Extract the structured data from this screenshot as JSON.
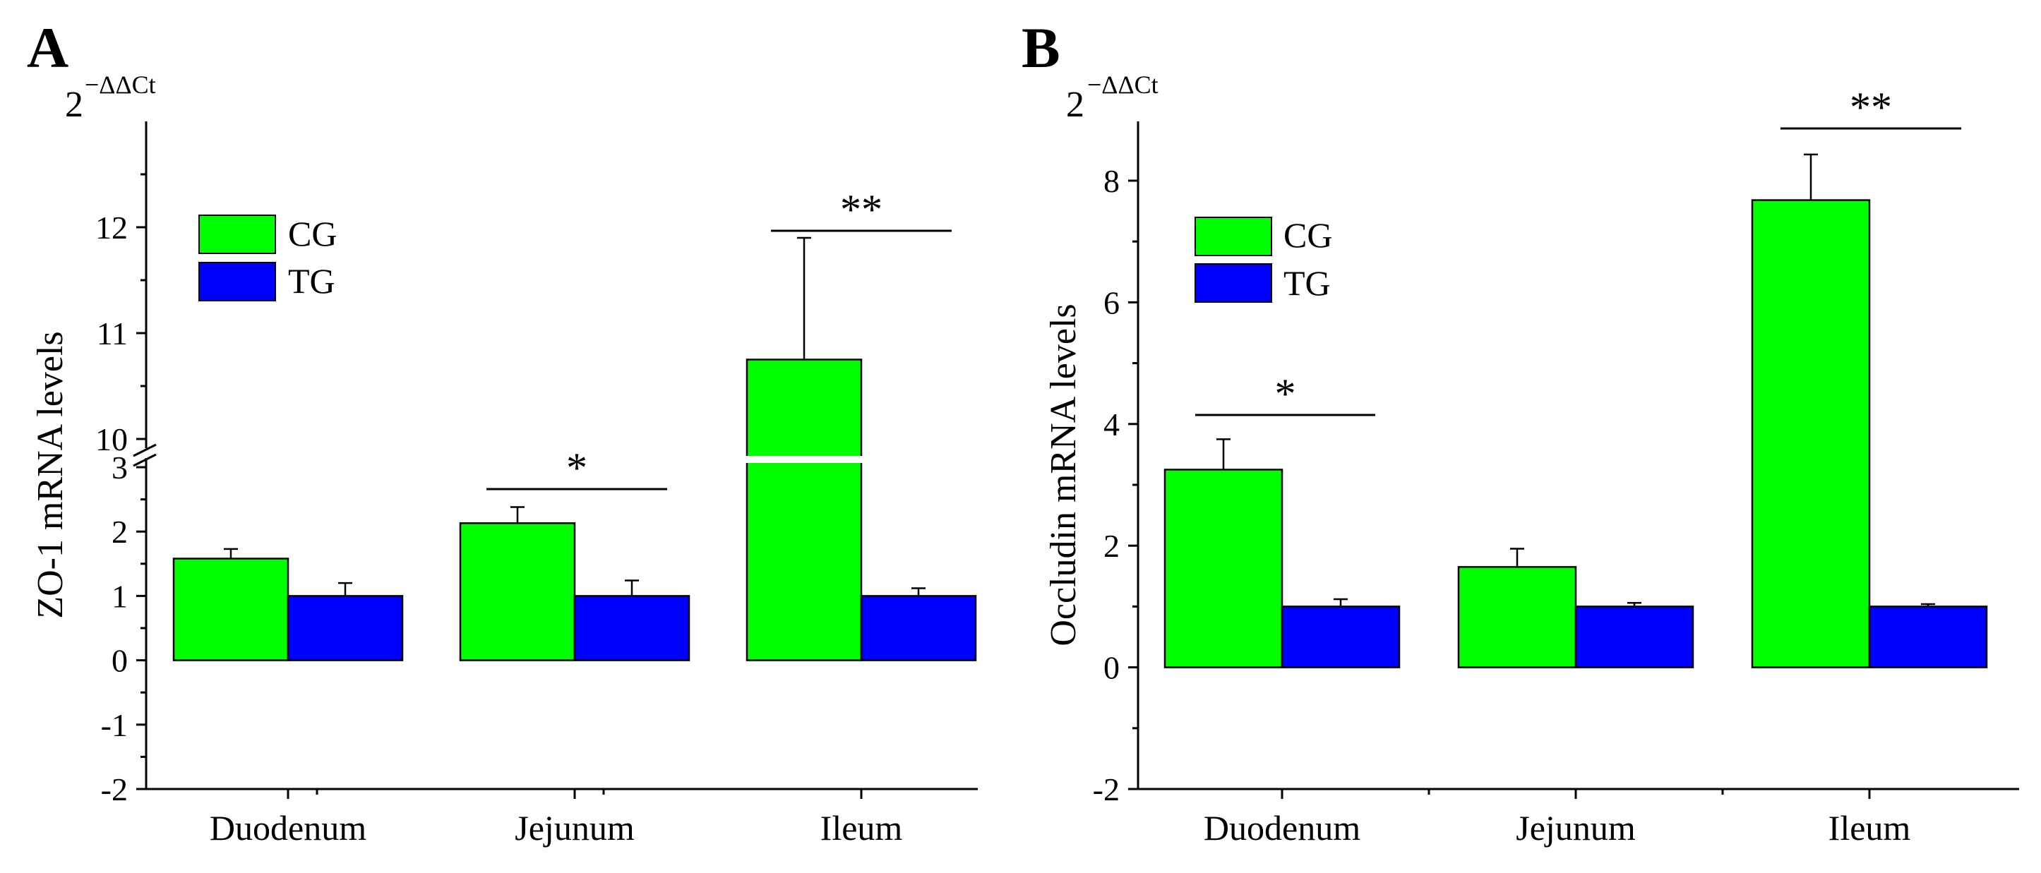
{
  "chart_data": [
    {
      "panel": "A",
      "type": "bar",
      "ylabel": "ZO-1 mRNA levels",
      "unit_base": "2",
      "unit_exponent": "−ΔΔCt",
      "categories": [
        "Duodenum",
        "Jejunum",
        "Ileum"
      ],
      "series": [
        {
          "name": "CG",
          "color": "#00ff00",
          "values": [
            1.58,
            2.13,
            10.75
          ],
          "errors": [
            0.15,
            0.25,
            1.15
          ]
        },
        {
          "name": "TG",
          "color": "#0000ff",
          "values": [
            1.0,
            1.0,
            1.0
          ],
          "errors": [
            0.2,
            0.24,
            0.12
          ]
        }
      ],
      "axis_break": {
        "lower": [
          -2,
          3
        ],
        "upper": [
          10,
          13
        ]
      },
      "lower_ticks": [
        "-2",
        "-1",
        "0",
        "1",
        "2",
        "3"
      ],
      "upper_ticks": [
        "10",
        "11",
        "12"
      ],
      "significance": [
        {
          "category": "Jejunum",
          "label": "*"
        },
        {
          "category": "Ileum",
          "label": "**"
        }
      ],
      "legend": [
        "CG",
        "TG"
      ]
    },
    {
      "panel": "B",
      "type": "bar",
      "ylabel": "Occludin mRNA levels",
      "unit_base": "2",
      "unit_exponent": "−ΔΔCt",
      "categories": [
        "Duodenum",
        "Jejunum",
        "Ileum"
      ],
      "series": [
        {
          "name": "CG",
          "color": "#00ff00",
          "values": [
            3.25,
            1.65,
            7.68
          ],
          "errors": [
            0.5,
            0.3,
            0.75
          ]
        },
        {
          "name": "TG",
          "color": "#0000ff",
          "values": [
            1.0,
            1.0,
            1.0
          ],
          "errors": [
            0.12,
            0.06,
            0.04
          ]
        }
      ],
      "ylim": [
        -2,
        9
      ],
      "ticks": [
        "-2",
        "0",
        "2",
        "4",
        "6",
        "8"
      ],
      "significance": [
        {
          "category": "Duodenum",
          "label": "*"
        },
        {
          "category": "Ileum",
          "label": "**"
        }
      ],
      "legend": [
        "CG",
        "TG"
      ]
    }
  ]
}
